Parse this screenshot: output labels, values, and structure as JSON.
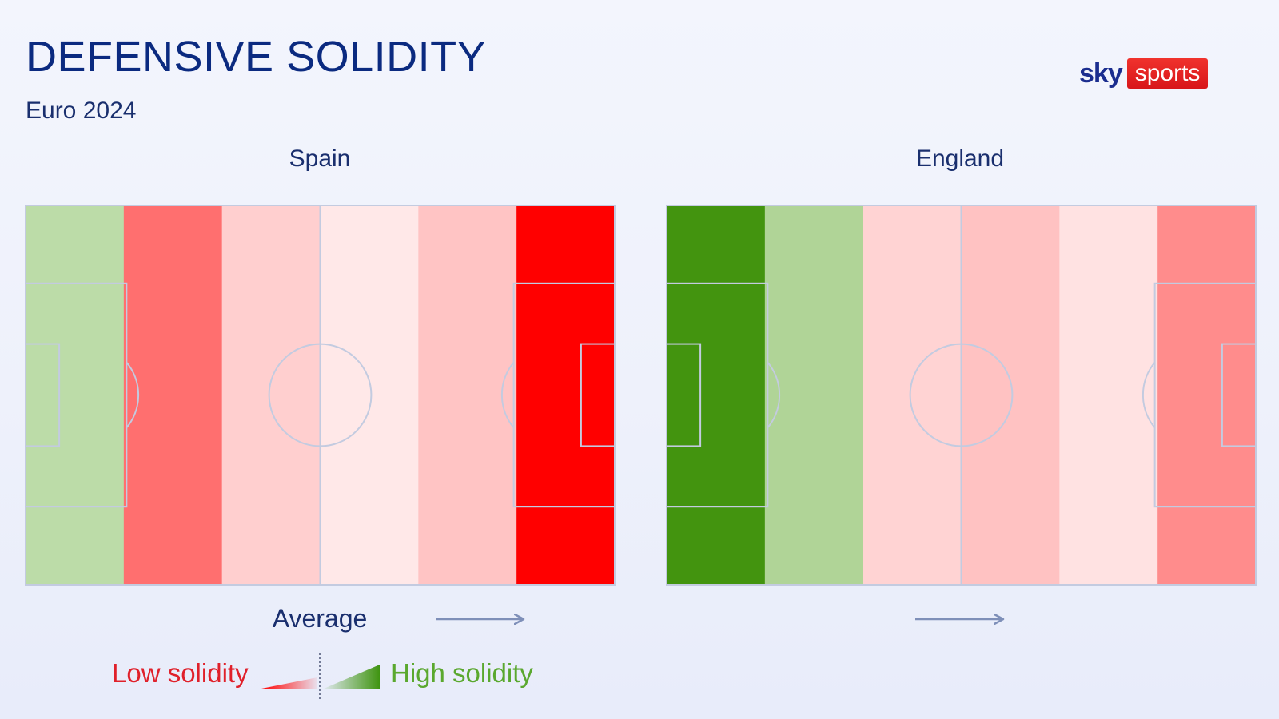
{
  "title": "DEFENSIVE SOLIDITY",
  "subtitle": "Euro 2024",
  "logo": {
    "sky": "sky",
    "sports": "sports"
  },
  "legend": {
    "low_label": "Low solidity",
    "high_label": "High solidity",
    "average_label": "Average",
    "low_color": "#ff0000",
    "high_color": "#3f9410"
  },
  "chart_data": [
    {
      "type": "heatmap",
      "name": "Spain",
      "zones": 6,
      "colors": [
        "#bcdca8",
        "#ff6f6f",
        "#ffcfcf",
        "#ffe8e8",
        "#ffc4c4",
        "#ff0000"
      ]
    },
    {
      "type": "heatmap",
      "name": "England",
      "zones": 6,
      "colors": [
        "#43940f",
        "#b0d497",
        "#ffd3d3",
        "#ffc2c2",
        "#ffe2e2",
        "#ff8c8c"
      ]
    }
  ]
}
